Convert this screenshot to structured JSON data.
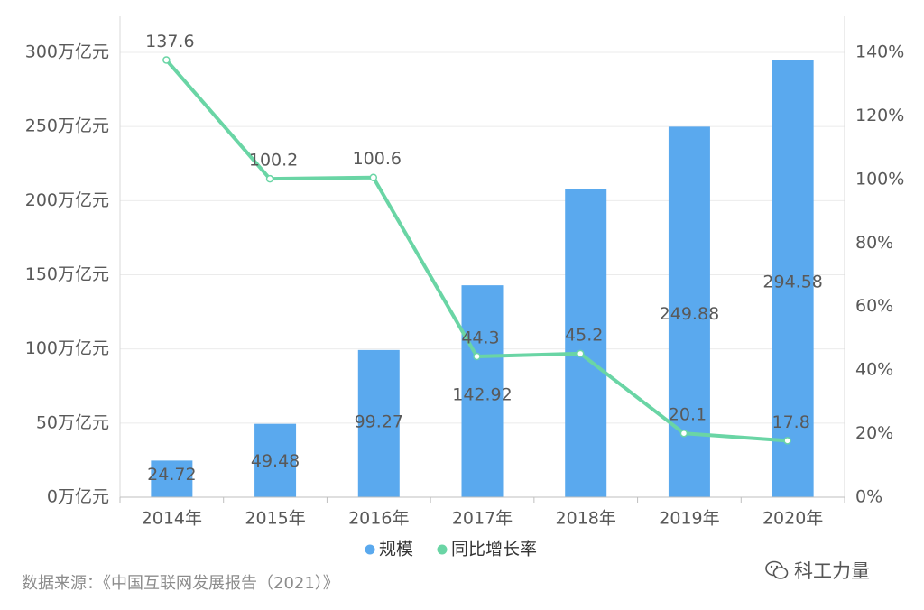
{
  "chart_data": {
    "type": "bar",
    "categories": [
      "2014年",
      "2015年",
      "2016年",
      "2017年",
      "2018年",
      "2019年",
      "2020年"
    ],
    "series": [
      {
        "name": "规模",
        "type": "bar",
        "axis": "left",
        "color": "#5aa9ee",
        "values": [
          24.72,
          49.48,
          99.27,
          142.92,
          207.5,
          249.88,
          294.58
        ],
        "labels": [
          "24.72",
          "49.48",
          "99.27",
          "142.92",
          "",
          "249.88",
          "294.58"
        ]
      },
      {
        "name": "同比增长率",
        "type": "line",
        "axis": "right",
        "color": "#6ad5a5",
        "values": [
          137.6,
          100.2,
          100.6,
          44.3,
          45.2,
          20.1,
          17.8
        ],
        "labels": [
          "137.6",
          "100.2",
          "100.6",
          "44.3",
          "45.2",
          "20.1",
          "17.8"
        ]
      }
    ],
    "y_left": {
      "ylim": [
        0,
        300
      ],
      "ticks": [
        0,
        50,
        100,
        150,
        200,
        250,
        300
      ],
      "tick_labels": [
        "0万亿元",
        "50万亿元",
        "100万亿元",
        "150万亿元",
        "200万亿元",
        "250万亿元",
        "300万亿元"
      ]
    },
    "y_right": {
      "ylim": [
        0,
        140
      ],
      "ticks": [
        0,
        20,
        40,
        60,
        80,
        100,
        120,
        140
      ],
      "tick_labels": [
        "0%",
        "20%",
        "40%",
        "60%",
        "80%",
        "100%",
        "120%",
        "140%"
      ]
    },
    "grid": true,
    "legend_position": "bottom"
  },
  "source_text": "数据来源：《中国互联网发展报告（2021）》",
  "watermark": {
    "text": "科工力量",
    "icon": "wechat-icon"
  }
}
